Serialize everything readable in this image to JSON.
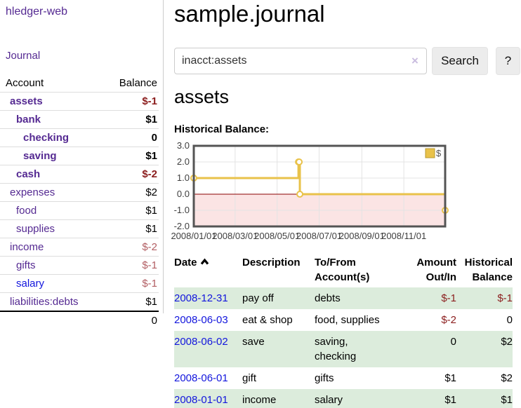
{
  "app": {
    "brand": "hledger-web",
    "nav_journal": "Journal"
  },
  "sidebar": {
    "header": {
      "account": "Account",
      "balance": "Balance"
    },
    "accounts": [
      {
        "name": "assets",
        "balance": "$-1"
      },
      {
        "name": "bank",
        "balance": "$1"
      },
      {
        "name": "checking",
        "balance": "0"
      },
      {
        "name": "saving",
        "balance": "$1"
      },
      {
        "name": "cash",
        "balance": "$-2"
      },
      {
        "name": "expenses",
        "balance": "$2"
      },
      {
        "name": "food",
        "balance": "$1"
      },
      {
        "name": "supplies",
        "balance": "$1"
      },
      {
        "name": "income",
        "balance": "$-2"
      },
      {
        "name": "gifts",
        "balance": "$-1"
      },
      {
        "name": "salary",
        "balance": "$-1"
      },
      {
        "name": "liabilities:debts",
        "balance": "$1"
      }
    ],
    "total": "0"
  },
  "main": {
    "title": "sample.journal",
    "search": {
      "value": "inacct:assets",
      "clear_icon": "×",
      "button": "Search",
      "help_button": "?"
    },
    "account_heading": "assets",
    "chart_label": "Historical Balance:"
  },
  "chart_data": {
    "type": "line",
    "style": "step",
    "title": "Historical Balance:",
    "legend": "$",
    "ylim": [
      -2,
      3
    ],
    "yticks": [
      3.0,
      2.0,
      1.0,
      0.0,
      -1.0,
      -2.0
    ],
    "xticks": [
      "2008/01/01",
      "2008/03/01",
      "2008/05/01",
      "2008/07/01",
      "2008/09/01",
      "2008/11/01"
    ],
    "x_range": [
      "2008/01/01",
      "2008/12/31"
    ],
    "series": [
      {
        "name": "$",
        "color": "#e9c24a",
        "points": [
          [
            "2008/01/01",
            1
          ],
          [
            "2008/06/01",
            2
          ],
          [
            "2008/06/02",
            2
          ],
          [
            "2008/06/03",
            0
          ],
          [
            "2008/12/31",
            -1
          ]
        ]
      }
    ],
    "negative_region_color": "#fbe4e4",
    "zero_line_color": "#8b0000",
    "grid_color": "#e3e3e3",
    "border_color": "#545454"
  },
  "register": {
    "headers": [
      "Date",
      "Description",
      "To/From Account(s)",
      "Amount Out/In",
      "Historical Balance"
    ],
    "rows": [
      {
        "date": "2008-12-31",
        "description": "pay off",
        "accounts": "debts",
        "amount": "$-1",
        "balance": "$-1"
      },
      {
        "date": "2008-06-03",
        "description": "eat & shop",
        "accounts": "food, supplies",
        "amount": "$-2",
        "balance": "0"
      },
      {
        "date": "2008-06-02",
        "description": "save",
        "accounts": "saving, checking",
        "amount": "0",
        "balance": "$2"
      },
      {
        "date": "2008-06-01",
        "description": "gift",
        "accounts": "gifts",
        "amount": "$1",
        "balance": "$2"
      },
      {
        "date": "2008-01-01",
        "description": "income",
        "accounts": "salary",
        "amount": "$1",
        "balance": "$1"
      }
    ]
  }
}
